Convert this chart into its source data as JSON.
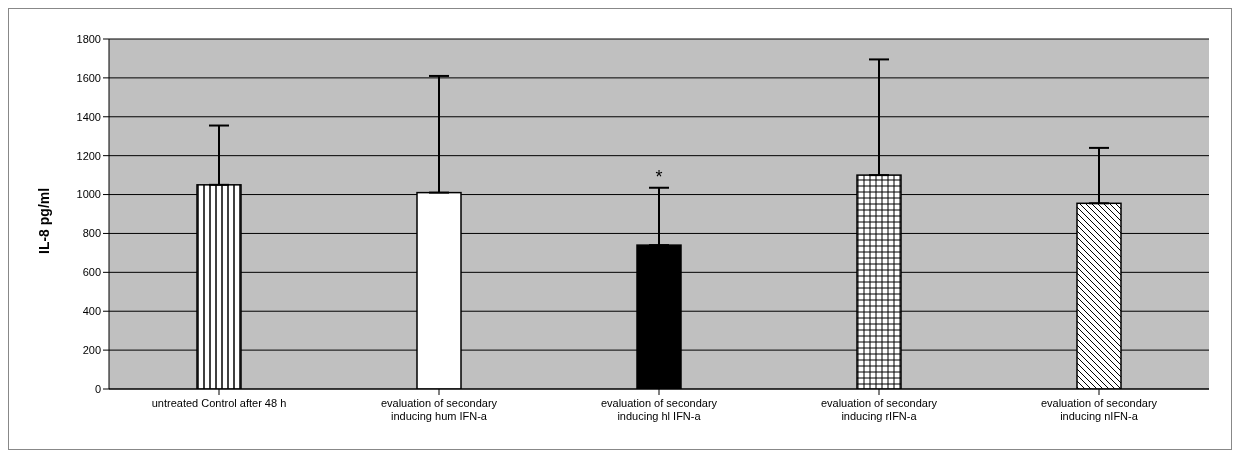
{
  "chart_data": {
    "type": "bar",
    "ylabel": "IL-8 pg/ml",
    "categories": [
      "untreated Control after 48 h",
      "evaluation of secondary inducing hum IFN-a",
      "evaluation of secondary inducing hl IFN-a",
      "evaluation of secondary inducing rIFN-a",
      "evaluation of secondary inducing nIFN-a"
    ],
    "values": [
      1050,
      1010,
      740,
      1100,
      955
    ],
    "errors": [
      [
        1050,
        1355
      ],
      [
        1010,
        1610
      ],
      [
        740,
        1035
      ],
      [
        1100,
        1695
      ],
      [
        955,
        1240
      ]
    ],
    "colors": [
      "#ffffff",
      "#ffffff",
      "#000000",
      "#ffffff",
      "#ffffff"
    ],
    "ylim": [
      0,
      1800
    ],
    "yticks": [
      0,
      200,
      400,
      600,
      800,
      1000,
      1200,
      1400,
      1600,
      1800
    ],
    "grid": "y",
    "legend": false,
    "annotations": [
      "*"
    ]
  }
}
